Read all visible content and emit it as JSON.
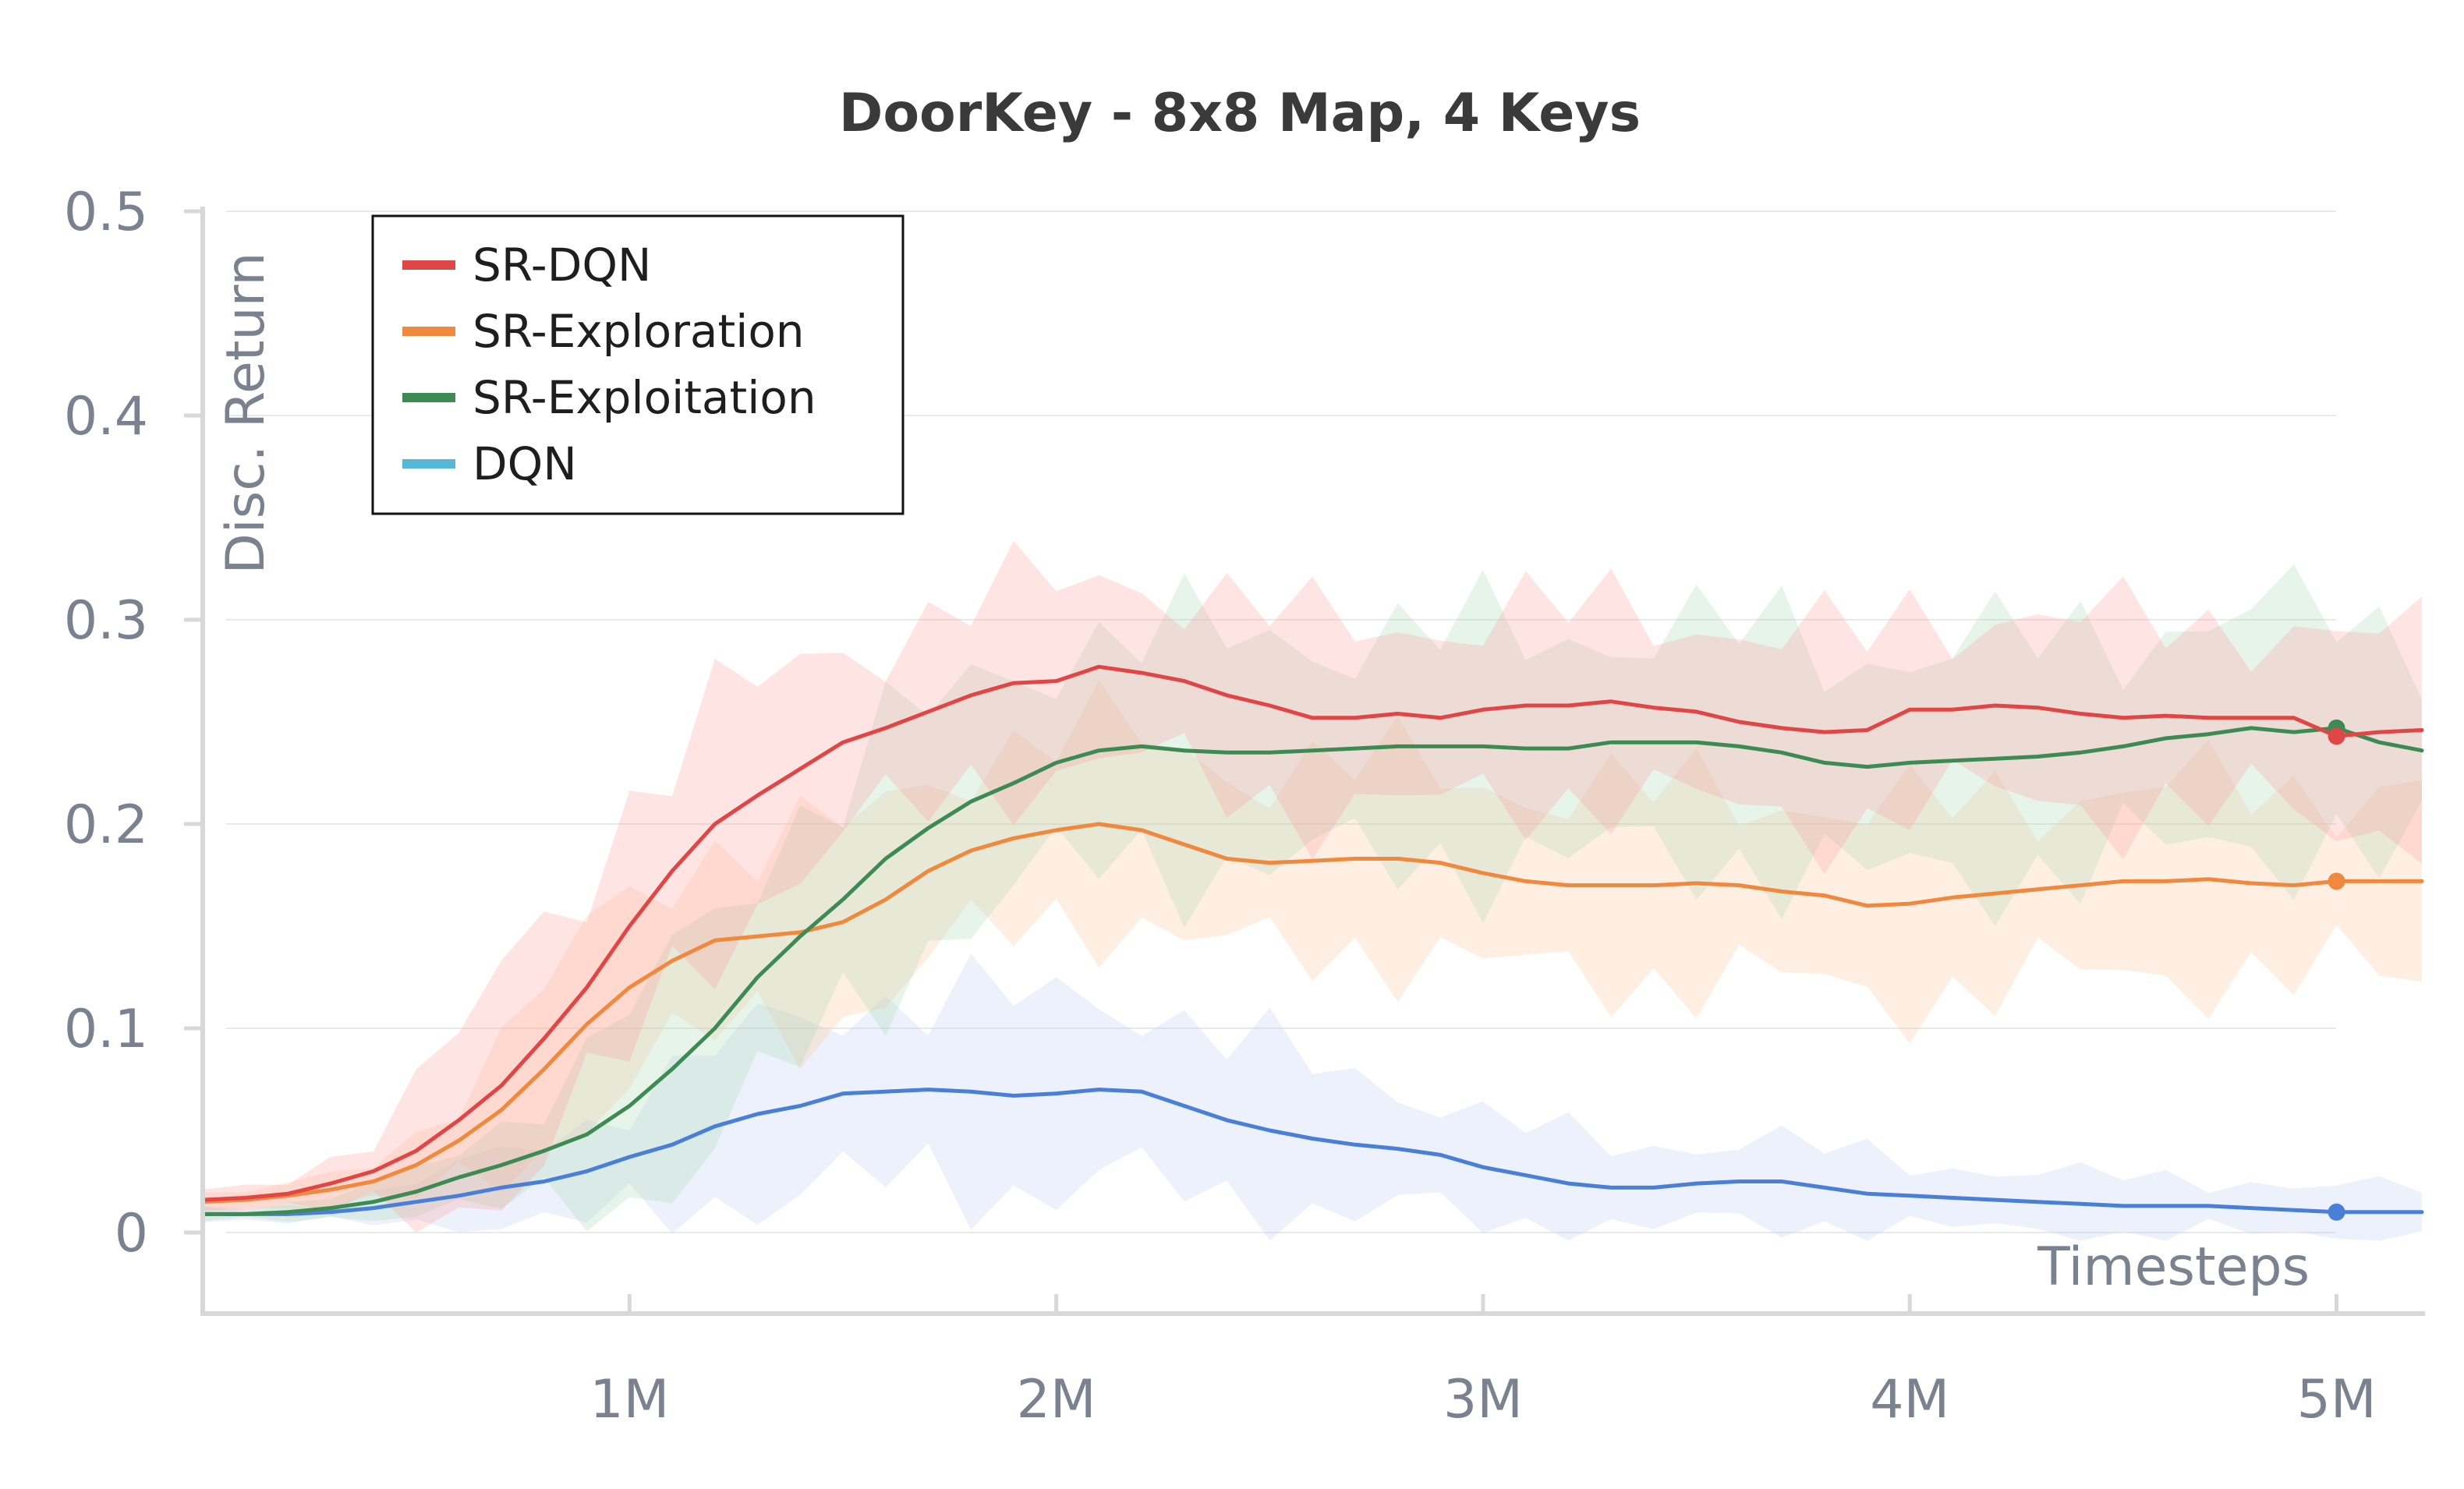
{
  "chart_data": {
    "type": "line",
    "title": "DoorKey - 8x8 Map, 4 Keys",
    "xlabel": "Timesteps",
    "ylabel": "Disc. Return",
    "xlim": [
      0,
      5200000
    ],
    "ylim": [
      -0.04,
      0.5
    ],
    "x_ticks": [
      {
        "value": 1000000,
        "label": "1M"
      },
      {
        "value": 2000000,
        "label": "2M"
      },
      {
        "value": 3000000,
        "label": "3M"
      },
      {
        "value": 4000000,
        "label": "4M"
      },
      {
        "value": 5000000,
        "label": "5M"
      }
    ],
    "y_ticks": [
      {
        "value": 0,
        "label": "0"
      },
      {
        "value": 0.1,
        "label": "0.1"
      },
      {
        "value": 0.2,
        "label": "0.2"
      },
      {
        "value": 0.3,
        "label": "0.3"
      },
      {
        "value": 0.4,
        "label": "0.4"
      },
      {
        "value": 0.5,
        "label": "0.5"
      }
    ],
    "grid": true,
    "legend_position": "top-left",
    "x": [
      0,
      100000,
      200000,
      300000,
      400000,
      500000,
      600000,
      700000,
      800000,
      900000,
      1000000,
      1100000,
      1200000,
      1300000,
      1400000,
      1500000,
      1600000,
      1700000,
      1800000,
      1900000,
      2000000,
      2100000,
      2200000,
      2300000,
      2400000,
      2500000,
      2600000,
      2700000,
      2800000,
      2900000,
      3000000,
      3100000,
      3200000,
      3300000,
      3400000,
      3500000,
      3600000,
      3700000,
      3800000,
      3900000,
      4000000,
      4100000,
      4200000,
      4300000,
      4400000,
      4500000,
      4600000,
      4700000,
      4800000,
      4900000,
      5000000,
      5100000,
      5200000
    ],
    "series": [
      {
        "name": "SR-DQN",
        "color": "#e04646",
        "band_color": "#ff9e9e",
        "values": [
          0.016,
          0.017,
          0.019,
          0.024,
          0.03,
          0.04,
          0.055,
          0.072,
          0.095,
          0.12,
          0.15,
          0.177,
          0.2,
          0.214,
          0.227,
          0.24,
          0.247,
          0.255,
          0.263,
          0.269,
          0.27,
          0.277,
          0.274,
          0.27,
          0.263,
          0.258,
          0.252,
          0.252,
          0.254,
          0.252,
          0.256,
          0.258,
          0.258,
          0.26,
          0.257,
          0.255,
          0.25,
          0.247,
          0.245,
          0.246,
          0.256,
          0.256,
          0.258,
          0.257,
          0.254,
          0.252,
          0.253,
          0.252,
          0.252,
          0.252,
          0.243,
          0.245,
          0.246
        ],
        "spread": [
          0.004,
          0.005,
          0.007,
          0.012,
          0.02,
          0.03,
          0.04,
          0.05,
          0.055,
          0.06,
          0.06,
          0.06,
          0.055,
          0.05,
          0.05,
          0.045,
          0.045,
          0.045,
          0.045,
          0.045,
          0.045,
          0.045,
          0.045,
          0.045,
          0.045,
          0.045,
          0.045,
          0.045,
          0.045,
          0.045,
          0.045,
          0.045,
          0.045,
          0.045,
          0.045,
          0.045,
          0.045,
          0.045,
          0.045,
          0.045,
          0.045,
          0.045,
          0.045,
          0.045,
          0.045,
          0.045,
          0.045,
          0.045,
          0.045,
          0.045,
          0.045,
          0.045,
          0.045
        ],
        "end_marker": {
          "x": 5000000,
          "y": 0.243
        }
      },
      {
        "name": "SR-Exploration",
        "color": "#f0883e",
        "band_color": "#ffc49c",
        "values": [
          0.015,
          0.016,
          0.018,
          0.021,
          0.025,
          0.033,
          0.045,
          0.06,
          0.08,
          0.102,
          0.12,
          0.133,
          0.143,
          0.145,
          0.147,
          0.152,
          0.163,
          0.177,
          0.187,
          0.193,
          0.197,
          0.2,
          0.197,
          0.19,
          0.183,
          0.181,
          0.182,
          0.183,
          0.183,
          0.181,
          0.176,
          0.172,
          0.17,
          0.17,
          0.17,
          0.171,
          0.17,
          0.167,
          0.165,
          0.16,
          0.161,
          0.164,
          0.166,
          0.168,
          0.17,
          0.172,
          0.172,
          0.173,
          0.171,
          0.17,
          0.172,
          0.172,
          0.172
        ],
        "spread": [
          0.004,
          0.004,
          0.005,
          0.007,
          0.01,
          0.015,
          0.022,
          0.03,
          0.038,
          0.042,
          0.045,
          0.045,
          0.045,
          0.045,
          0.045,
          0.045,
          0.045,
          0.045,
          0.045,
          0.045,
          0.045,
          0.045,
          0.045,
          0.045,
          0.045,
          0.045,
          0.045,
          0.045,
          0.045,
          0.045,
          0.045,
          0.045,
          0.045,
          0.045,
          0.045,
          0.045,
          0.045,
          0.045,
          0.045,
          0.045,
          0.045,
          0.045,
          0.045,
          0.045,
          0.045,
          0.045,
          0.045,
          0.045,
          0.045,
          0.045,
          0.045,
          0.045,
          0.045
        ],
        "end_marker": {
          "x": 5000000,
          "y": 0.172
        }
      },
      {
        "name": "SR-Exploitation",
        "color": "#3d8b53",
        "band_color": "#a8d8b4",
        "values": [
          0.009,
          0.009,
          0.01,
          0.012,
          0.015,
          0.02,
          0.027,
          0.033,
          0.04,
          0.048,
          0.062,
          0.08,
          0.1,
          0.125,
          0.145,
          0.163,
          0.183,
          0.198,
          0.211,
          0.22,
          0.23,
          0.236,
          0.238,
          0.236,
          0.235,
          0.235,
          0.236,
          0.237,
          0.238,
          0.238,
          0.238,
          0.237,
          0.237,
          0.24,
          0.24,
          0.24,
          0.238,
          0.235,
          0.23,
          0.228,
          0.23,
          0.231,
          0.232,
          0.233,
          0.235,
          0.238,
          0.242,
          0.244,
          0.247,
          0.245,
          0.247,
          0.24,
          0.236
        ],
        "spread": [
          0.003,
          0.003,
          0.004,
          0.005,
          0.007,
          0.01,
          0.015,
          0.02,
          0.028,
          0.035,
          0.045,
          0.05,
          0.055,
          0.06,
          0.06,
          0.06,
          0.058,
          0.055,
          0.055,
          0.055,
          0.055,
          0.055,
          0.055,
          0.055,
          0.055,
          0.055,
          0.055,
          0.055,
          0.055,
          0.055,
          0.055,
          0.055,
          0.055,
          0.055,
          0.055,
          0.055,
          0.055,
          0.055,
          0.055,
          0.055,
          0.055,
          0.055,
          0.055,
          0.055,
          0.055,
          0.055,
          0.055,
          0.055,
          0.055,
          0.055,
          0.055,
          0.055,
          0.055
        ],
        "end_marker": {
          "x": 5000000,
          "y": 0.247
        }
      },
      {
        "name": "DQN",
        "color": "#4a7fd8",
        "band_color": "#b9ccf2",
        "legend_color": "#56b8d6",
        "values": [
          0.009,
          0.009,
          0.009,
          0.01,
          0.012,
          0.015,
          0.018,
          0.022,
          0.025,
          0.03,
          0.037,
          0.043,
          0.052,
          0.058,
          0.062,
          0.068,
          0.069,
          0.07,
          0.069,
          0.067,
          0.068,
          0.07,
          0.069,
          0.062,
          0.055,
          0.05,
          0.046,
          0.043,
          0.041,
          0.038,
          0.032,
          0.028,
          0.024,
          0.022,
          0.022,
          0.024,
          0.025,
          0.025,
          0.022,
          0.019,
          0.018,
          0.017,
          0.016,
          0.015,
          0.014,
          0.013,
          0.013,
          0.013,
          0.012,
          0.011,
          0.01,
          0.01,
          0.01
        ],
        "spread": [
          0.003,
          0.003,
          0.004,
          0.005,
          0.007,
          0.01,
          0.013,
          0.017,
          0.02,
          0.024,
          0.028,
          0.032,
          0.036,
          0.04,
          0.042,
          0.044,
          0.045,
          0.045,
          0.045,
          0.045,
          0.045,
          0.045,
          0.045,
          0.042,
          0.04,
          0.038,
          0.035,
          0.033,
          0.03,
          0.028,
          0.026,
          0.024,
          0.022,
          0.02,
          0.02,
          0.02,
          0.02,
          0.02,
          0.018,
          0.018,
          0.016,
          0.015,
          0.015,
          0.014,
          0.014,
          0.014,
          0.013,
          0.013,
          0.013,
          0.012,
          0.012,
          0.012,
          0.012
        ],
        "end_marker": {
          "x": 5000000,
          "y": 0.01
        }
      }
    ]
  }
}
